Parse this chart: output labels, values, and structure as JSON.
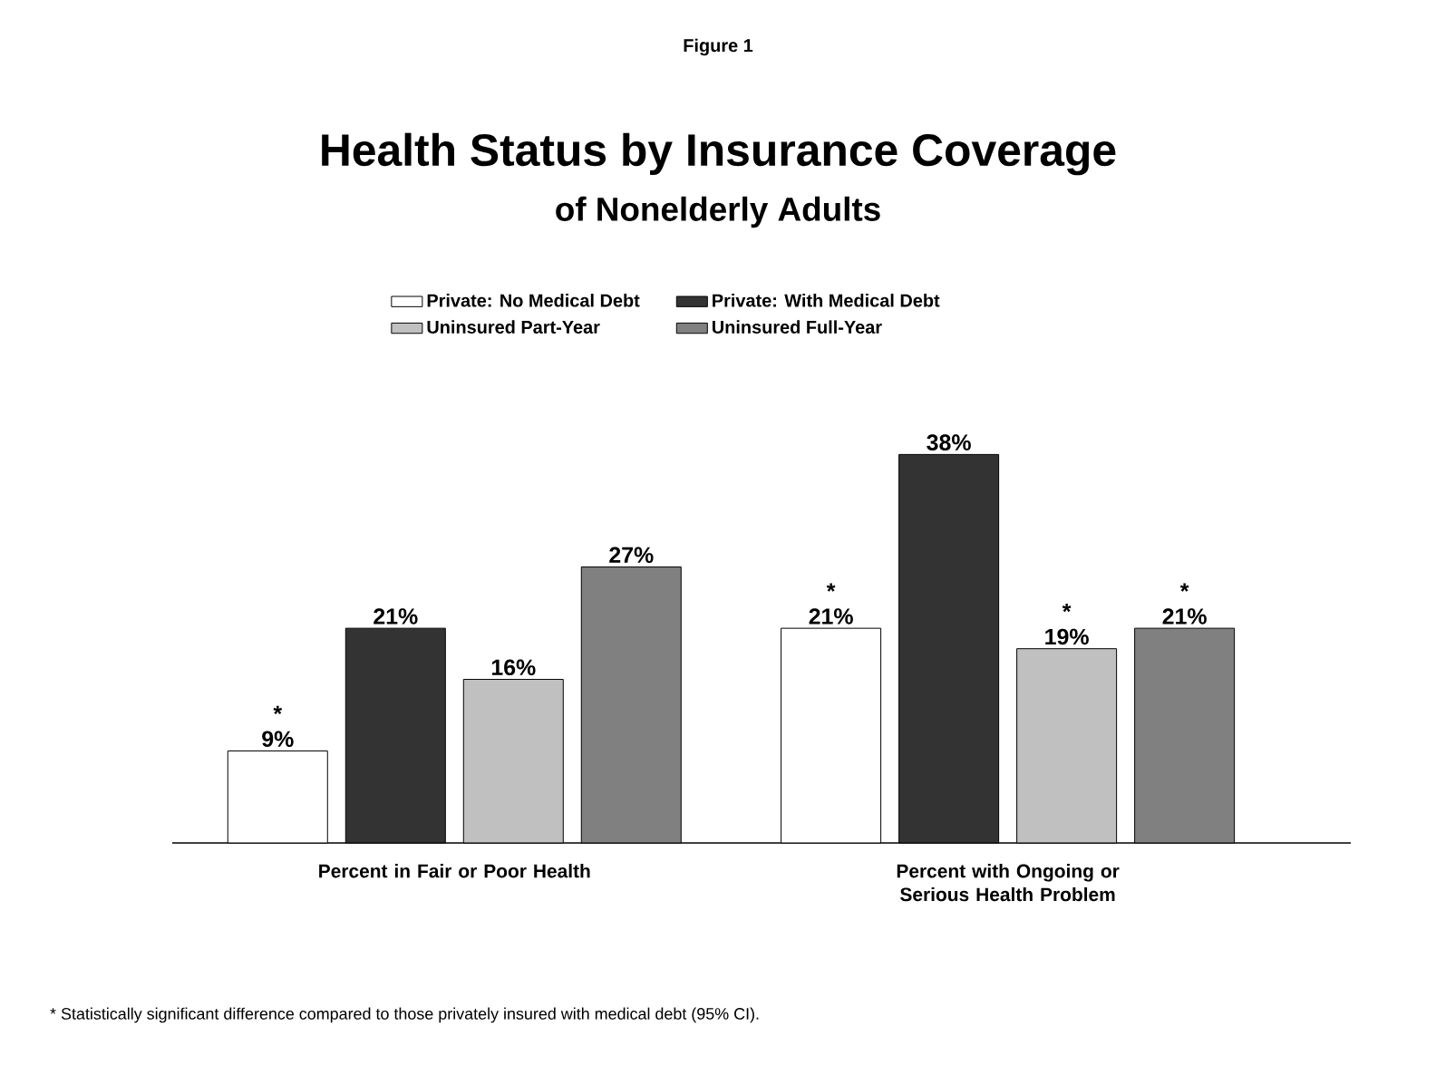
{
  "chart_data": {
    "type": "bar",
    "title": "Health Status by Insurance Coverage",
    "subtitle": "of Nonelderly Adults",
    "categories": [
      "Percent in Fair or Poor Health",
      "Percent with Ongoing or Serious Health Problem"
    ],
    "series": [
      {
        "name": "Private: No Medical Debt",
        "color": "#ffffff",
        "values": [
          9,
          21
        ],
        "value_labels": [
          "* 9%",
          "* 21%"
        ]
      },
      {
        "name": "Private:  With Medical Debt",
        "color": "#333333",
        "values": [
          21,
          38
        ],
        "value_labels": [
          "21%",
          "38%"
        ]
      },
      {
        "name": "Uninsured Part-Year",
        "color": "#c0c0c0",
        "values": [
          16,
          19
        ],
        "value_labels": [
          "16%",
          "* 19%"
        ]
      },
      {
        "name": "Uninsured Full-Year",
        "color": "#808080",
        "values": [
          27,
          21
        ],
        "value_labels": [
          "27%",
          "* 21%"
        ]
      }
    ],
    "annotations": [
      "Figure 1",
      "* Statistically significant difference compared to those privately insured with medical debt (95% CI)."
    ],
    "legend": "top"
  }
}
